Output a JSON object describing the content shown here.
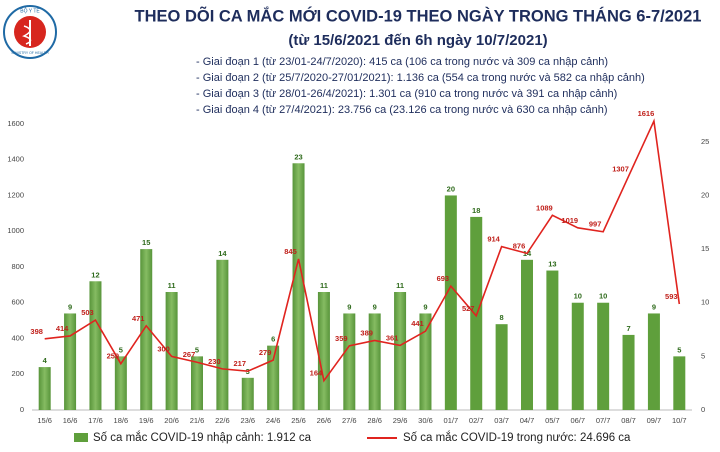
{
  "chart_data": {
    "type": "combo",
    "title": "THEO DÕI CA MẮC MỚI COVID-19 THEO NGÀY TRONG THÁNG 6-7/2021",
    "subtitle": "(từ 15/6/2021 đến 6h ngày 10/7/2021)",
    "notes": [
      "- Giai đoạn 1 (từ 23/01-24/7/2020): 415 ca (106 ca trong nước và 309 ca nhập cảnh)",
      "- Giai đoạn 2 (từ 25/7/2020-27/01/2021): 1.136 ca (554 ca trong nước và 582 ca nhập cảnh)",
      "- Giai đoạn 3 (từ 28/01-26/4/2021): 1.301 ca (910 ca trong nước và 391 ca nhập cảnh)",
      "- Giai đoạn 4 (từ 27/4/2021): 23.756 ca (23.126 ca trong nước và 630 ca nhập cảnh)"
    ],
    "logo_text": [
      "BỘ Y TẾ",
      "MINISTRY OF HEALTH"
    ],
    "categories": [
      "15/6",
      "16/6",
      "17/6",
      "18/6",
      "19/6",
      "20/6",
      "21/6",
      "22/6",
      "23/6",
      "24/6",
      "25/6",
      "26/6",
      "27/6",
      "28/6",
      "29/6",
      "30/6",
      "01/7",
      "02/7",
      "03/7",
      "04/7",
      "05/7",
      "06/7",
      "07/7",
      "08/7",
      "09/7",
      "10/7"
    ],
    "series": [
      {
        "name": "Số ca mắc COVID-19 nhập cảnh: 1.912 ca",
        "type": "bar",
        "axis": "y2",
        "color": "#5f9f3c",
        "label_color": "#2f6b1c",
        "values": [
          4,
          9,
          12,
          5,
          15,
          11,
          5,
          14,
          3,
          6,
          23,
          11,
          9,
          9,
          11,
          9,
          20,
          18,
          8,
          14,
          13,
          10,
          10,
          7,
          9,
          5
        ]
      },
      {
        "name": "Số ca mắc COVID-19 trong nước: 24.696 ca",
        "type": "line",
        "color": "#e0241f",
        "values": [
          398,
          414,
          503,
          259,
          471,
          300,
          267,
          230,
          217,
          279,
          845,
          164,
          359,
          389,
          361,
          441,
          693,
          527,
          914,
          876,
          1089,
          1019,
          997,
          1307,
          1616,
          593
        ]
      }
    ],
    "ylim": [
      0,
      1650
    ],
    "yticks": [
      0,
      200,
      400,
      600,
      800,
      1000,
      1200,
      1400,
      1600
    ],
    "y2lim": [
      0,
      27.5
    ],
    "y2ticks": [
      0,
      5,
      10,
      15,
      20,
      25
    ],
    "grid": false
  }
}
